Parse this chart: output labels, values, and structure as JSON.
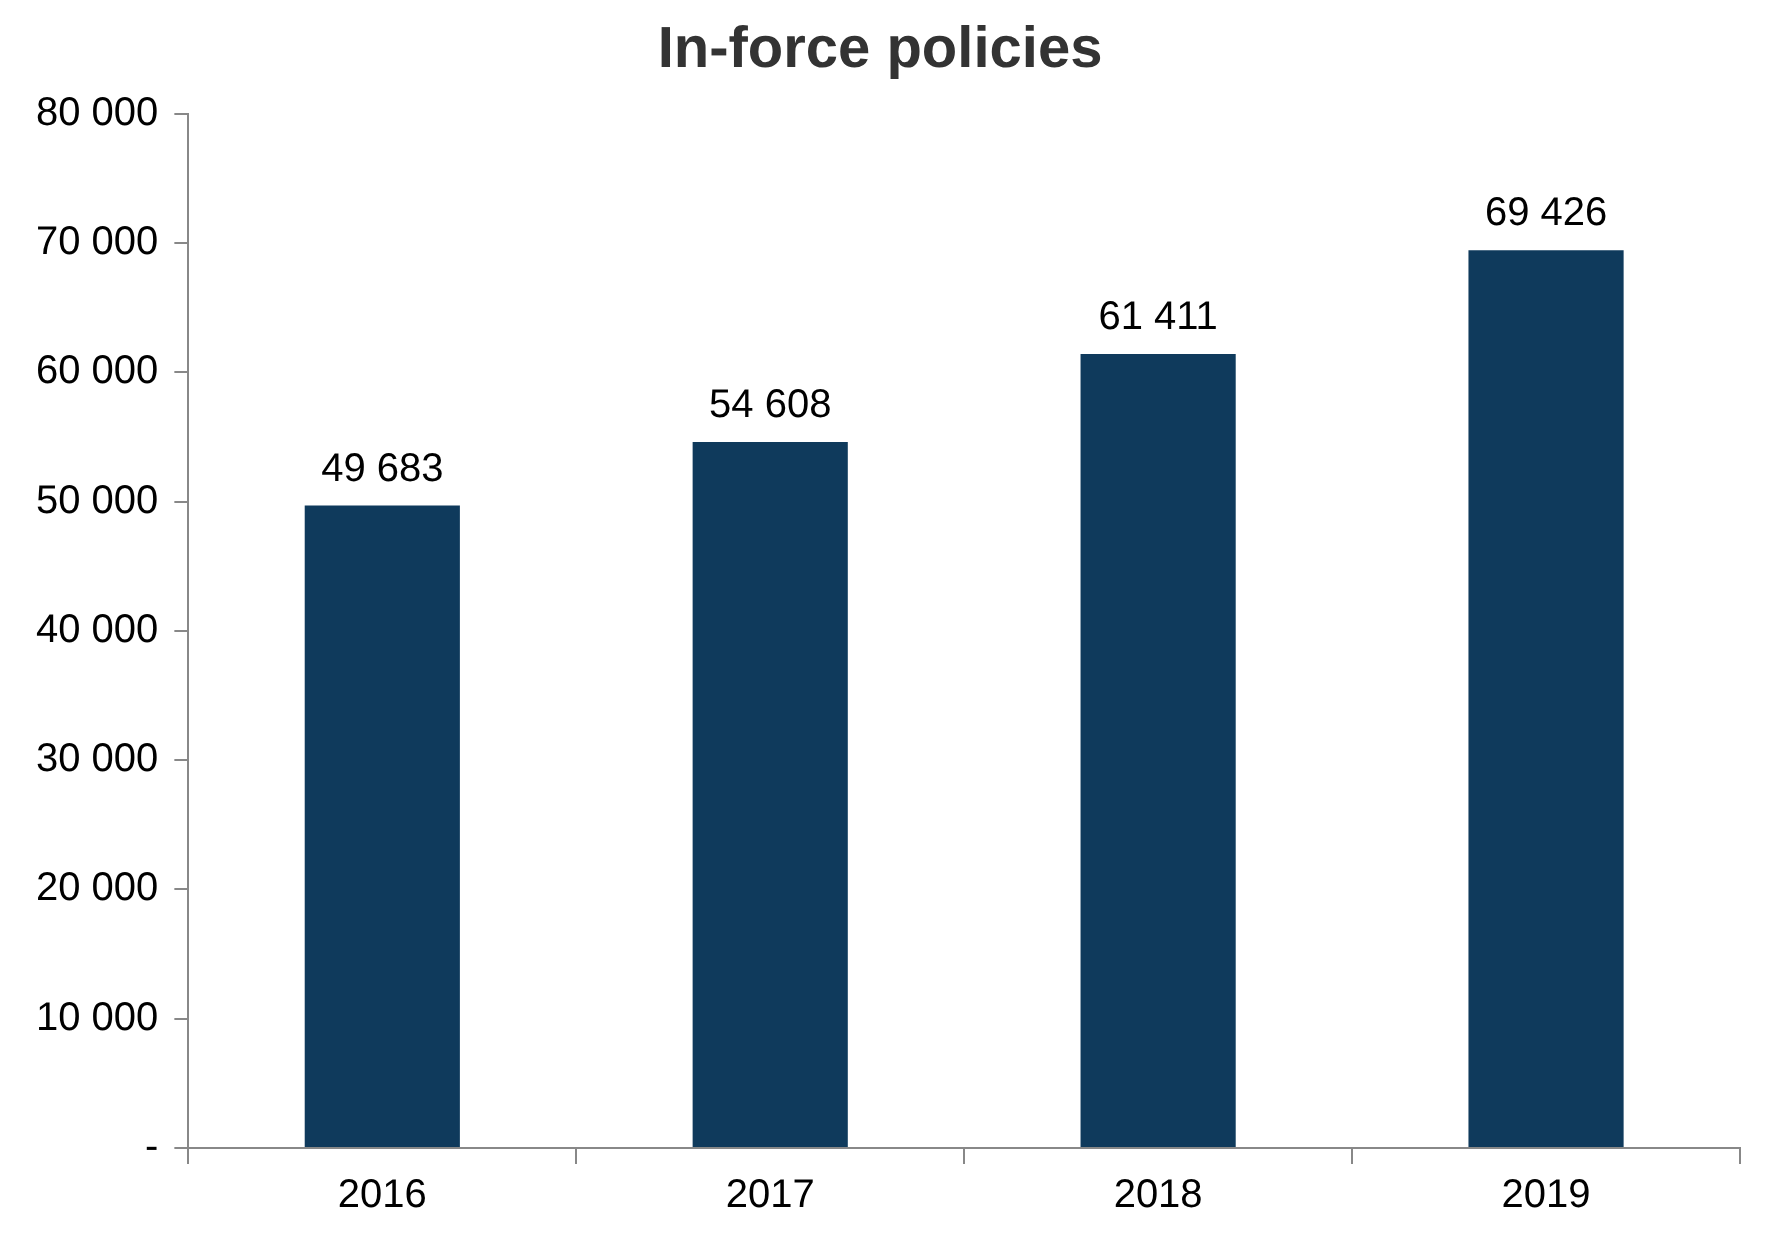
{
  "chart_data": {
    "type": "bar",
    "title": "In-force policies",
    "categories": [
      "2016",
      "2017",
      "2018",
      "2019"
    ],
    "values": [
      49683,
      54608,
      61411,
      69426
    ],
    "value_labels": [
      "49 683",
      "54 608",
      "61 411",
      "69 426"
    ],
    "color": "#0f3a5c",
    "ylim": [
      0,
      80000
    ],
    "yticks": [
      {
        "value": 0,
        "label": "-"
      },
      {
        "value": 10000,
        "label": "10 000"
      },
      {
        "value": 20000,
        "label": "20 000"
      },
      {
        "value": 30000,
        "label": "30 000"
      },
      {
        "value": 40000,
        "label": "40 000"
      },
      {
        "value": 50000,
        "label": "50 000"
      },
      {
        "value": 60000,
        "label": "60 000"
      },
      {
        "value": 70000,
        "label": "70 000"
      },
      {
        "value": 80000,
        "label": "80 000"
      }
    ],
    "grid": false,
    "legend": false
  }
}
